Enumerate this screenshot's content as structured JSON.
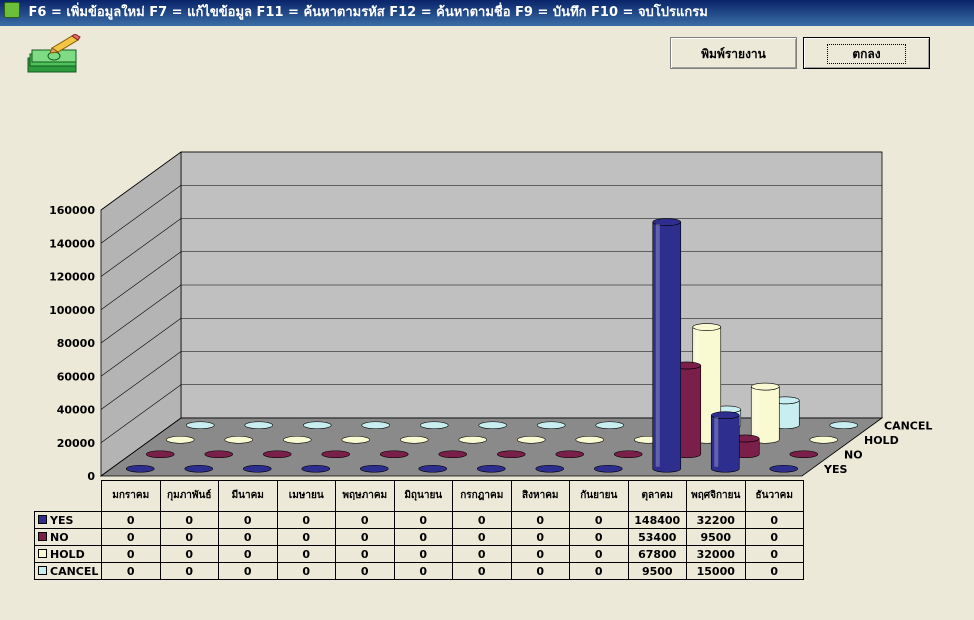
{
  "window": {
    "title": "F6 = เพิ่มข้อมูลใหม่ F7 = แก้ไขข้อมูล  F11 = ค้นหาตามรหัส F12 = ค้นหาตามชื่อ F9 = บันทึก  F10 = จบโปรแกรม"
  },
  "toolbar": {
    "print_label": "พิมพ์รายงาน",
    "ok_label": "ตกลง",
    "app_icon": "money-pencil-icon"
  },
  "chart_data": {
    "type": "bar",
    "categories": [
      "มกราคม",
      "กุมภาพันธ์",
      "มีนาคม",
      "เมษายน",
      "พฤษภาคม",
      "มิถุนายน",
      "กรกฎาคม",
      "สิงหาคม",
      "กันยายน",
      "ตุลาคม",
      "พฤศจิกายน",
      "ธันวาคม"
    ],
    "series": [
      {
        "name": "YES",
        "color": "#2e2e8e",
        "values": [
          0,
          0,
          0,
          0,
          0,
          0,
          0,
          0,
          0,
          148400,
          32200,
          0
        ]
      },
      {
        "name": "NO",
        "color": "#7a1f4a",
        "values": [
          0,
          0,
          0,
          0,
          0,
          0,
          0,
          0,
          0,
          53400,
          9500,
          0
        ]
      },
      {
        "name": "HOLD",
        "color": "#fafad2",
        "values": [
          0,
          0,
          0,
          0,
          0,
          0,
          0,
          0,
          0,
          67800,
          32000,
          0
        ]
      },
      {
        "name": "CANCEL",
        "color": "#c8eef2",
        "values": [
          0,
          0,
          0,
          0,
          0,
          0,
          0,
          0,
          0,
          9500,
          15000,
          0
        ]
      }
    ],
    "ylim": [
      0,
      160000
    ],
    "yticks": [
      "0",
      "20000",
      "40000",
      "60000",
      "80000",
      "100000",
      "120000",
      "140000",
      "160000"
    ],
    "title": "",
    "xlabel": "",
    "ylabel": ""
  }
}
